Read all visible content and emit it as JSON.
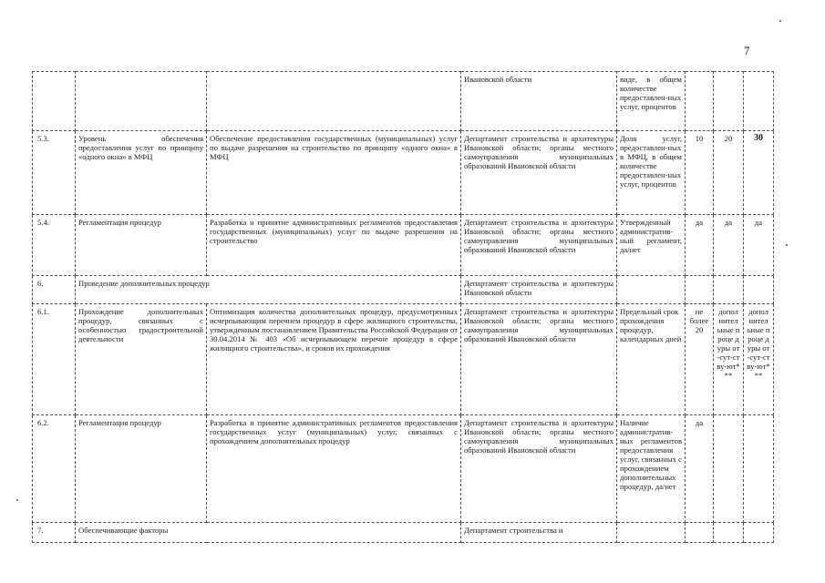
{
  "page_number": "7",
  "rows": [
    {
      "num": "",
      "name": "",
      "action": "",
      "responsible": "Ивановской области",
      "indicator": "виде, в общем количестве предоставлен-ных услуг, процентов",
      "v1": "",
      "v2": "",
      "v3": ""
    },
    {
      "num": "5.3.",
      "name": "Уровень обеспечения предоставления услуг по принципу «одного окна» в МФЦ",
      "action": "Обеспечение предоставления государственных (муниципальных) услуг по выдаче разрешения на строительство по принципу «одного окна» в МФЦ",
      "responsible": "Департамент строительства и архитектуры Ивановской области; органы местного самоуправления муниципальных образований Ивановской области",
      "indicator": "Доля услуг, предоставлен-ных в МФЦ, в общем количестве предоставлен-ных услуг, процентов",
      "v1": "10",
      "v2": "20",
      "v3": "30"
    },
    {
      "num": "5.4.",
      "name": "Регламентация процедур",
      "action": "Разработка и принятие административных регламентов предоставления государственных (муниципальных) услуг по выдаче разрешения на строительство",
      "responsible": "Департамент строительства и архитектуры Ивановской области; органы местного самоуправления муниципальных образований Ивановской области",
      "indicator": "Утвержденный административ-ный регламент, да/нет",
      "v1": "да",
      "v2": "да",
      "v3": "да"
    },
    {
      "num": "6.",
      "name": "Проведение дополнительных процедур",
      "responsible": "Департамент строительства и архитектуры Ивановской области",
      "indicator": "",
      "v1": "",
      "v2": "",
      "v3": ""
    },
    {
      "num": "6.1.",
      "name": "Прохождение дополнительных процедур, связанных с особенностью градостроительной деятельности",
      "action": "Оптимизация количества дополнительных процедур, предусмотренных исчерпывающим перечнем процедур в сфере жилищного строительства, утвержденным постановлением Правительства Российской Федерации от 30.04.2014 № 403 «Об исчерпывающем перечне процедур в сфере жилищного строительства», и сроков их прохождения",
      "responsible": "Департамент строительства и архитектуры Ивановской области; органы местного самоуправления муниципальных образований Ивановской области",
      "indicator": "Предельный срок прохождения процедур, календарных дней",
      "v1": "не более 20",
      "v2": "допол нител ьные проце дуры от-сут-ству-ют***",
      "v3": "допол нител ьные проце дуры от-сут-ству-ют***"
    },
    {
      "num": "6.2.",
      "name": "Регламентация процедур",
      "action": "Разработка и принятие административных регламентов предоставления государственных услуг (муниципальных) услуг, связанных с прохождением дополнительных процедур",
      "responsible": "Департамент строительства и архитектуры Ивановской области; органы местного самоуправления муниципальных образований Ивановской области",
      "indicator": "Наличие административ-ных регламентов предоставления услуг, связанных с прохождением дополнительных процедур, да/нет",
      "v1": "да",
      "v2": "",
      "v3": ""
    },
    {
      "num": "7.",
      "name": "Обеспечивающие факторы",
      "responsible": "Департамент строительства и",
      "indicator": "",
      "v1": "",
      "v2": "",
      "v3": ""
    }
  ]
}
